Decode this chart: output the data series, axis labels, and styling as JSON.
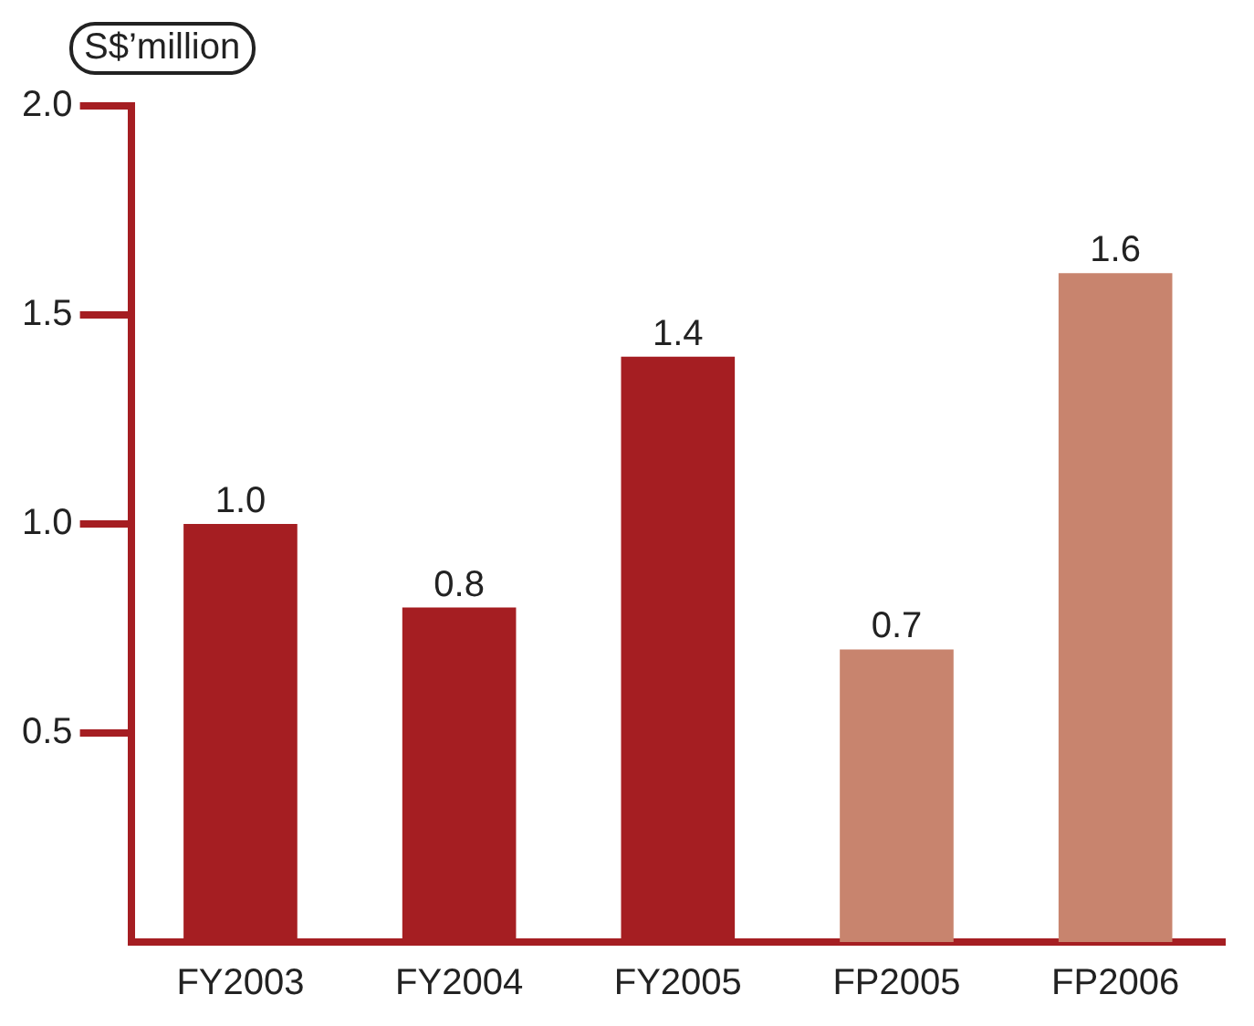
{
  "chart_data": {
    "type": "bar",
    "ylabel": "S$’million",
    "categories": [
      "FY2003",
      "FY2004",
      "FY2005",
      "FP2005",
      "FP2006"
    ],
    "values": [
      1.0,
      0.8,
      1.4,
      0.7,
      1.6
    ],
    "colors": [
      "#a51e22",
      "#a51e22",
      "#a51e22",
      "#c8846e",
      "#c8846e"
    ],
    "ylim": [
      0,
      2.0
    ],
    "yticks": [
      {
        "value": 0.5,
        "label": "0.5"
      },
      {
        "value": 1,
        "label": "1.0"
      },
      {
        "value": 1.5,
        "label": "1.5"
      },
      {
        "value": 2,
        "label": "2.0"
      }
    ],
    "value_labels": [
      "1.0",
      "0.8",
      "1.4",
      "0.7",
      "1.6"
    ],
    "grid": false,
    "legend": false
  }
}
